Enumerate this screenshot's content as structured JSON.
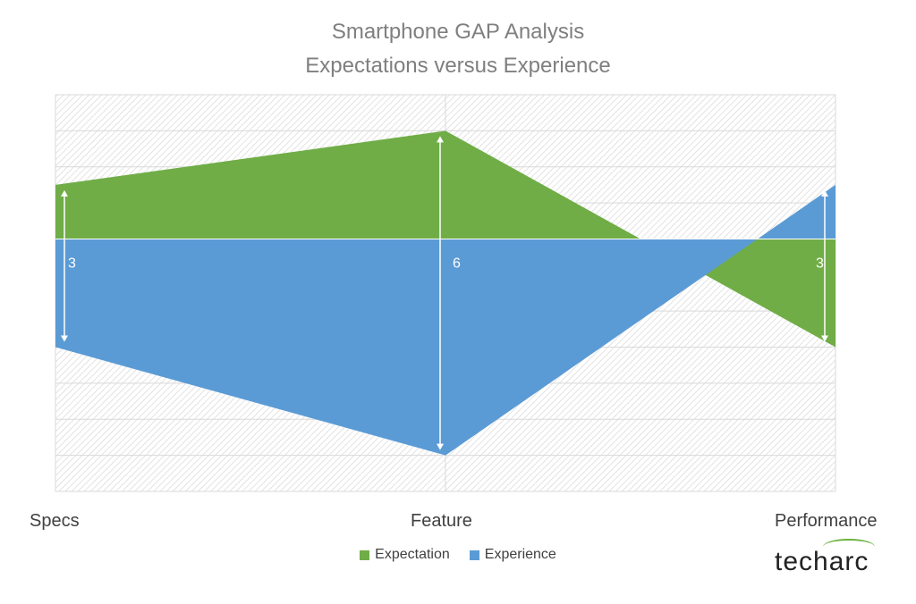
{
  "chart_data": {
    "type": "area",
    "title": "Smartphone GAP Analysis",
    "subtitle": "Expectations versus Experience",
    "categories": [
      "Specs",
      "Feature",
      "Performance"
    ],
    "series": [
      {
        "name": "Expectation",
        "values": [
          3,
          6,
          -6
        ],
        "color": "#70ad47"
      },
      {
        "name": "Experience",
        "values": [
          -6,
          -12,
          3
        ],
        "color": "#5b9bd5"
      }
    ],
    "ylim": [
      -14,
      8
    ],
    "gap_labels": [
      "3",
      "6",
      "3"
    ],
    "grid": true,
    "legend": "bottom",
    "pattern": "diagonal-hatch"
  },
  "brand": {
    "logo_text": "techarc"
  }
}
